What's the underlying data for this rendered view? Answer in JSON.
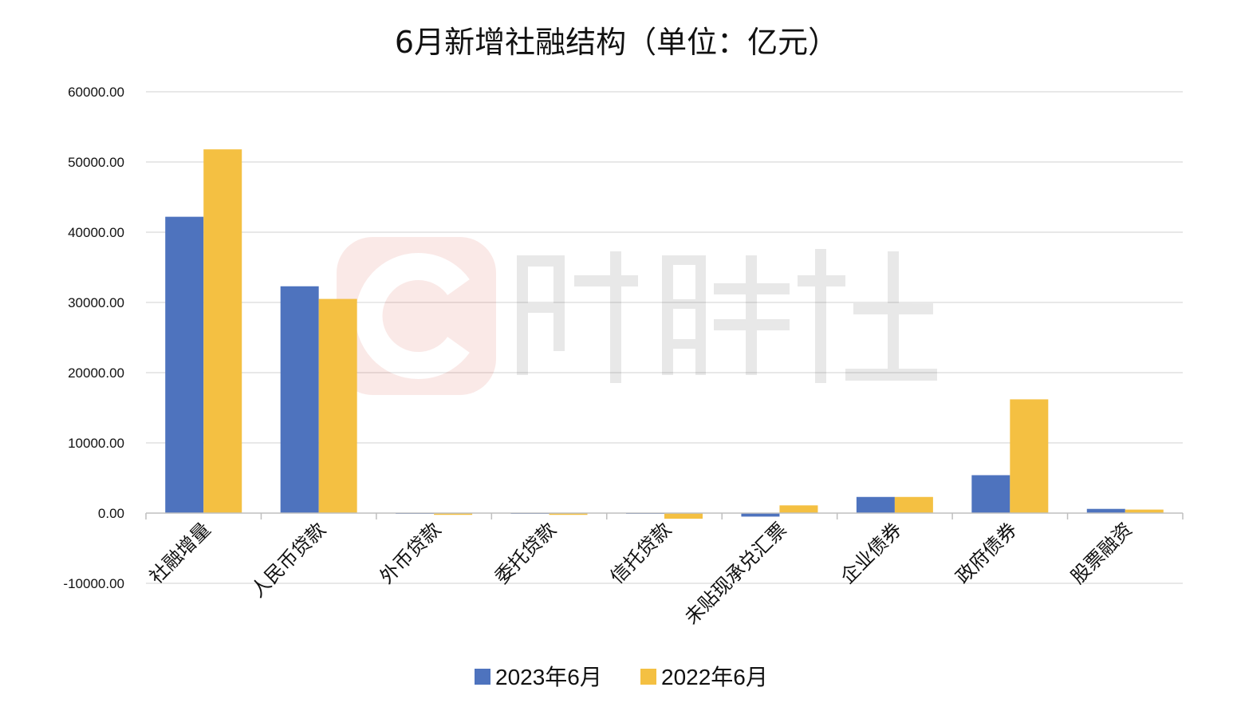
{
  "chart_data": {
    "type": "bar",
    "title": "6月新增社融结构（单位：亿元）",
    "categories": [
      "社融增量",
      "人民币贷款",
      "外币贷款",
      "委托贷款",
      "信托贷款",
      "未贴现承兑汇票",
      "企业债券",
      "政府债券",
      "股票融资"
    ],
    "series": [
      {
        "name": "2023年6月",
        "color": "#4e73be",
        "values": [
          42200,
          32300,
          -50,
          -40,
          -30,
          -500,
          2300,
          5400,
          600
        ]
      },
      {
        "name": "2022年6月",
        "color": "#f4c042",
        "values": [
          51800,
          30500,
          -250,
          -250,
          -800,
          1100,
          2300,
          16200,
          500
        ]
      }
    ],
    "y_ticks": [
      "60000.00",
      "50000.00",
      "40000.00",
      "30000.00",
      "20000.00",
      "10000.00",
      "0.00",
      "-10000.00"
    ],
    "negative_tick_color": "#e0342a",
    "ylim": [
      -10000,
      60000
    ],
    "grid": true,
    "legend_position": "bottom",
    "watermark": {
      "brand": "财联社",
      "color": "#e8a09a"
    }
  }
}
